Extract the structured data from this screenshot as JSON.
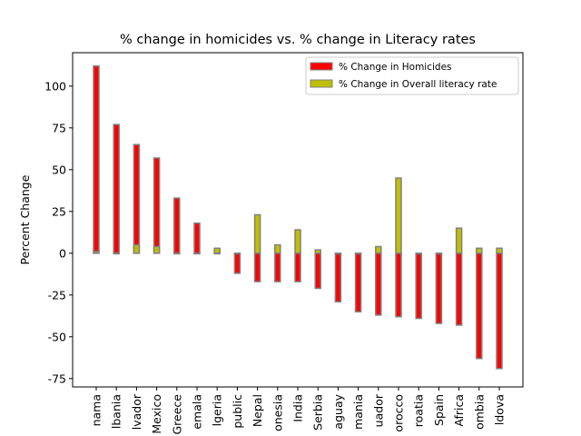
{
  "chart_data": {
    "type": "bar",
    "title": "% change in homicides vs. % change in Literacy rates",
    "xlabel": "",
    "ylabel": "Percent Change",
    "ylim": [
      -80,
      120
    ],
    "yticks": [
      -75,
      -50,
      -25,
      0,
      25,
      50,
      75,
      100
    ],
    "legend_position": "top-right",
    "grid": false,
    "categories": [
      "nama",
      "lbania",
      "lvador",
      "Mexico",
      "Greece",
      "emala",
      "lgeria",
      "public",
      "Nepal",
      "onesia",
      "India",
      "Serbia",
      "aguay",
      "mania",
      "uador",
      "orocco",
      "roatia",
      "Spain",
      "Africa",
      "ombia",
      "ldova"
    ],
    "series": [
      {
        "name": "% Change in Homicides",
        "color": "#ff0000",
        "values": [
          112,
          77,
          65,
          57,
          33,
          18,
          0,
          -12,
          -17,
          -17,
          -17,
          -21,
          -29,
          -35,
          -37,
          -38,
          -39,
          -42,
          -43,
          -63,
          -69
        ]
      },
      {
        "name": "% Change in Overall literacy rate",
        "color": "#bfbf00",
        "values": [
          1,
          0,
          5,
          4,
          0,
          0,
          3,
          0,
          23,
          5,
          14,
          2,
          0,
          0,
          4,
          45,
          0,
          0,
          15,
          3,
          3
        ]
      }
    ]
  }
}
